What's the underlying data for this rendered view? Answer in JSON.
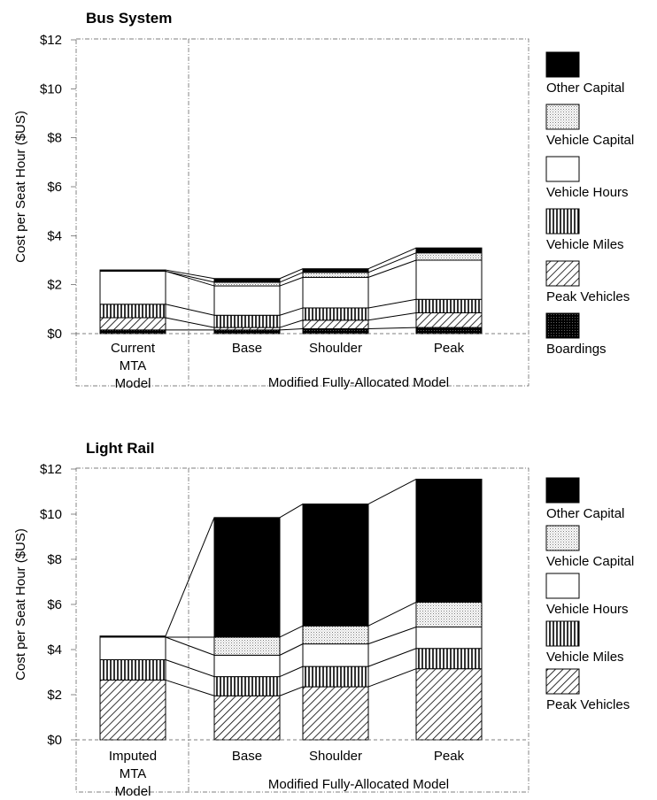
{
  "colors": {
    "other_capital": "#000000",
    "vehicle_hours": "#ffffff",
    "frame": "#000000"
  },
  "chart_data": [
    {
      "type": "stacked-bar",
      "title": "Bus System",
      "ylabel": "Cost per Seat Hour ($US)",
      "yticks": [
        "$0",
        "$2",
        "$4",
        "$6",
        "$8",
        "$10",
        "$12"
      ],
      "ylim": [
        0,
        12
      ],
      "grid": false,
      "legend_placement": "right",
      "categories": [
        "Current MTA Model",
        "Base",
        "Shoulder",
        "Peak"
      ],
      "category_labels": [
        [
          "Current",
          "MTA",
          "Model"
        ],
        [
          "Base"
        ],
        [
          "Shoulder"
        ],
        [
          "Peak"
        ]
      ],
      "group_label": "Modified Fully-Allocated Model",
      "series": [
        {
          "name": "Boardings",
          "pattern": "dots-dark",
          "values": [
            0.15,
            0.15,
            0.2,
            0.25
          ]
        },
        {
          "name": "Peak Vehicles",
          "pattern": "diag",
          "values": [
            0.5,
            0.1,
            0.35,
            0.6
          ]
        },
        {
          "name": "Vehicle Miles",
          "pattern": "vert",
          "values": [
            0.55,
            0.5,
            0.5,
            0.55
          ]
        },
        {
          "name": "Vehicle Hours",
          "pattern": "white",
          "values": [
            1.35,
            1.2,
            1.25,
            1.6
          ]
        },
        {
          "name": "Vehicle Capital",
          "pattern": "dots",
          "values": [
            0,
            0.15,
            0.2,
            0.3
          ]
        },
        {
          "name": "Other Capital",
          "pattern": "black",
          "values": [
            0.05,
            0.15,
            0.15,
            0.2
          ]
        }
      ],
      "legend_order": [
        "Other Capital",
        "Vehicle Capital",
        "Vehicle Hours",
        "Vehicle Miles",
        "Peak Vehicles",
        "Boardings"
      ]
    },
    {
      "type": "stacked-bar",
      "title": "Light Rail",
      "ylabel": "Cost per Seat Hour ($US)",
      "yticks": [
        "$0",
        "$2",
        "$4",
        "$6",
        "$8",
        "$10",
        "$12"
      ],
      "ylim": [
        0,
        12
      ],
      "grid": false,
      "legend_placement": "right",
      "categories": [
        "Imputed MTA Model",
        "Base",
        "Shoulder",
        "Peak"
      ],
      "category_labels": [
        [
          "Imputed",
          "MTA",
          "Model"
        ],
        [
          "Base"
        ],
        [
          "Shoulder"
        ],
        [
          "Peak"
        ]
      ],
      "group_label": "Modified Fully-Allocated Model",
      "series": [
        {
          "name": "Peak Vehicles",
          "pattern": "diag",
          "values": [
            2.65,
            1.95,
            2.35,
            3.15
          ]
        },
        {
          "name": "Vehicle Miles",
          "pattern": "vert",
          "values": [
            0.9,
            0.85,
            0.9,
            0.9
          ]
        },
        {
          "name": "Vehicle Hours",
          "pattern": "white",
          "values": [
            1.0,
            0.95,
            1.0,
            0.95
          ]
        },
        {
          "name": "Vehicle Capital",
          "pattern": "dots",
          "values": [
            0,
            0.8,
            0.8,
            1.1
          ]
        },
        {
          "name": "Other Capital",
          "pattern": "black",
          "values": [
            0.05,
            5.3,
            5.4,
            5.45
          ]
        }
      ],
      "legend_order": [
        "Other Capital",
        "Vehicle Capital",
        "Vehicle Hours",
        "Vehicle Miles",
        "Peak Vehicles"
      ]
    }
  ]
}
